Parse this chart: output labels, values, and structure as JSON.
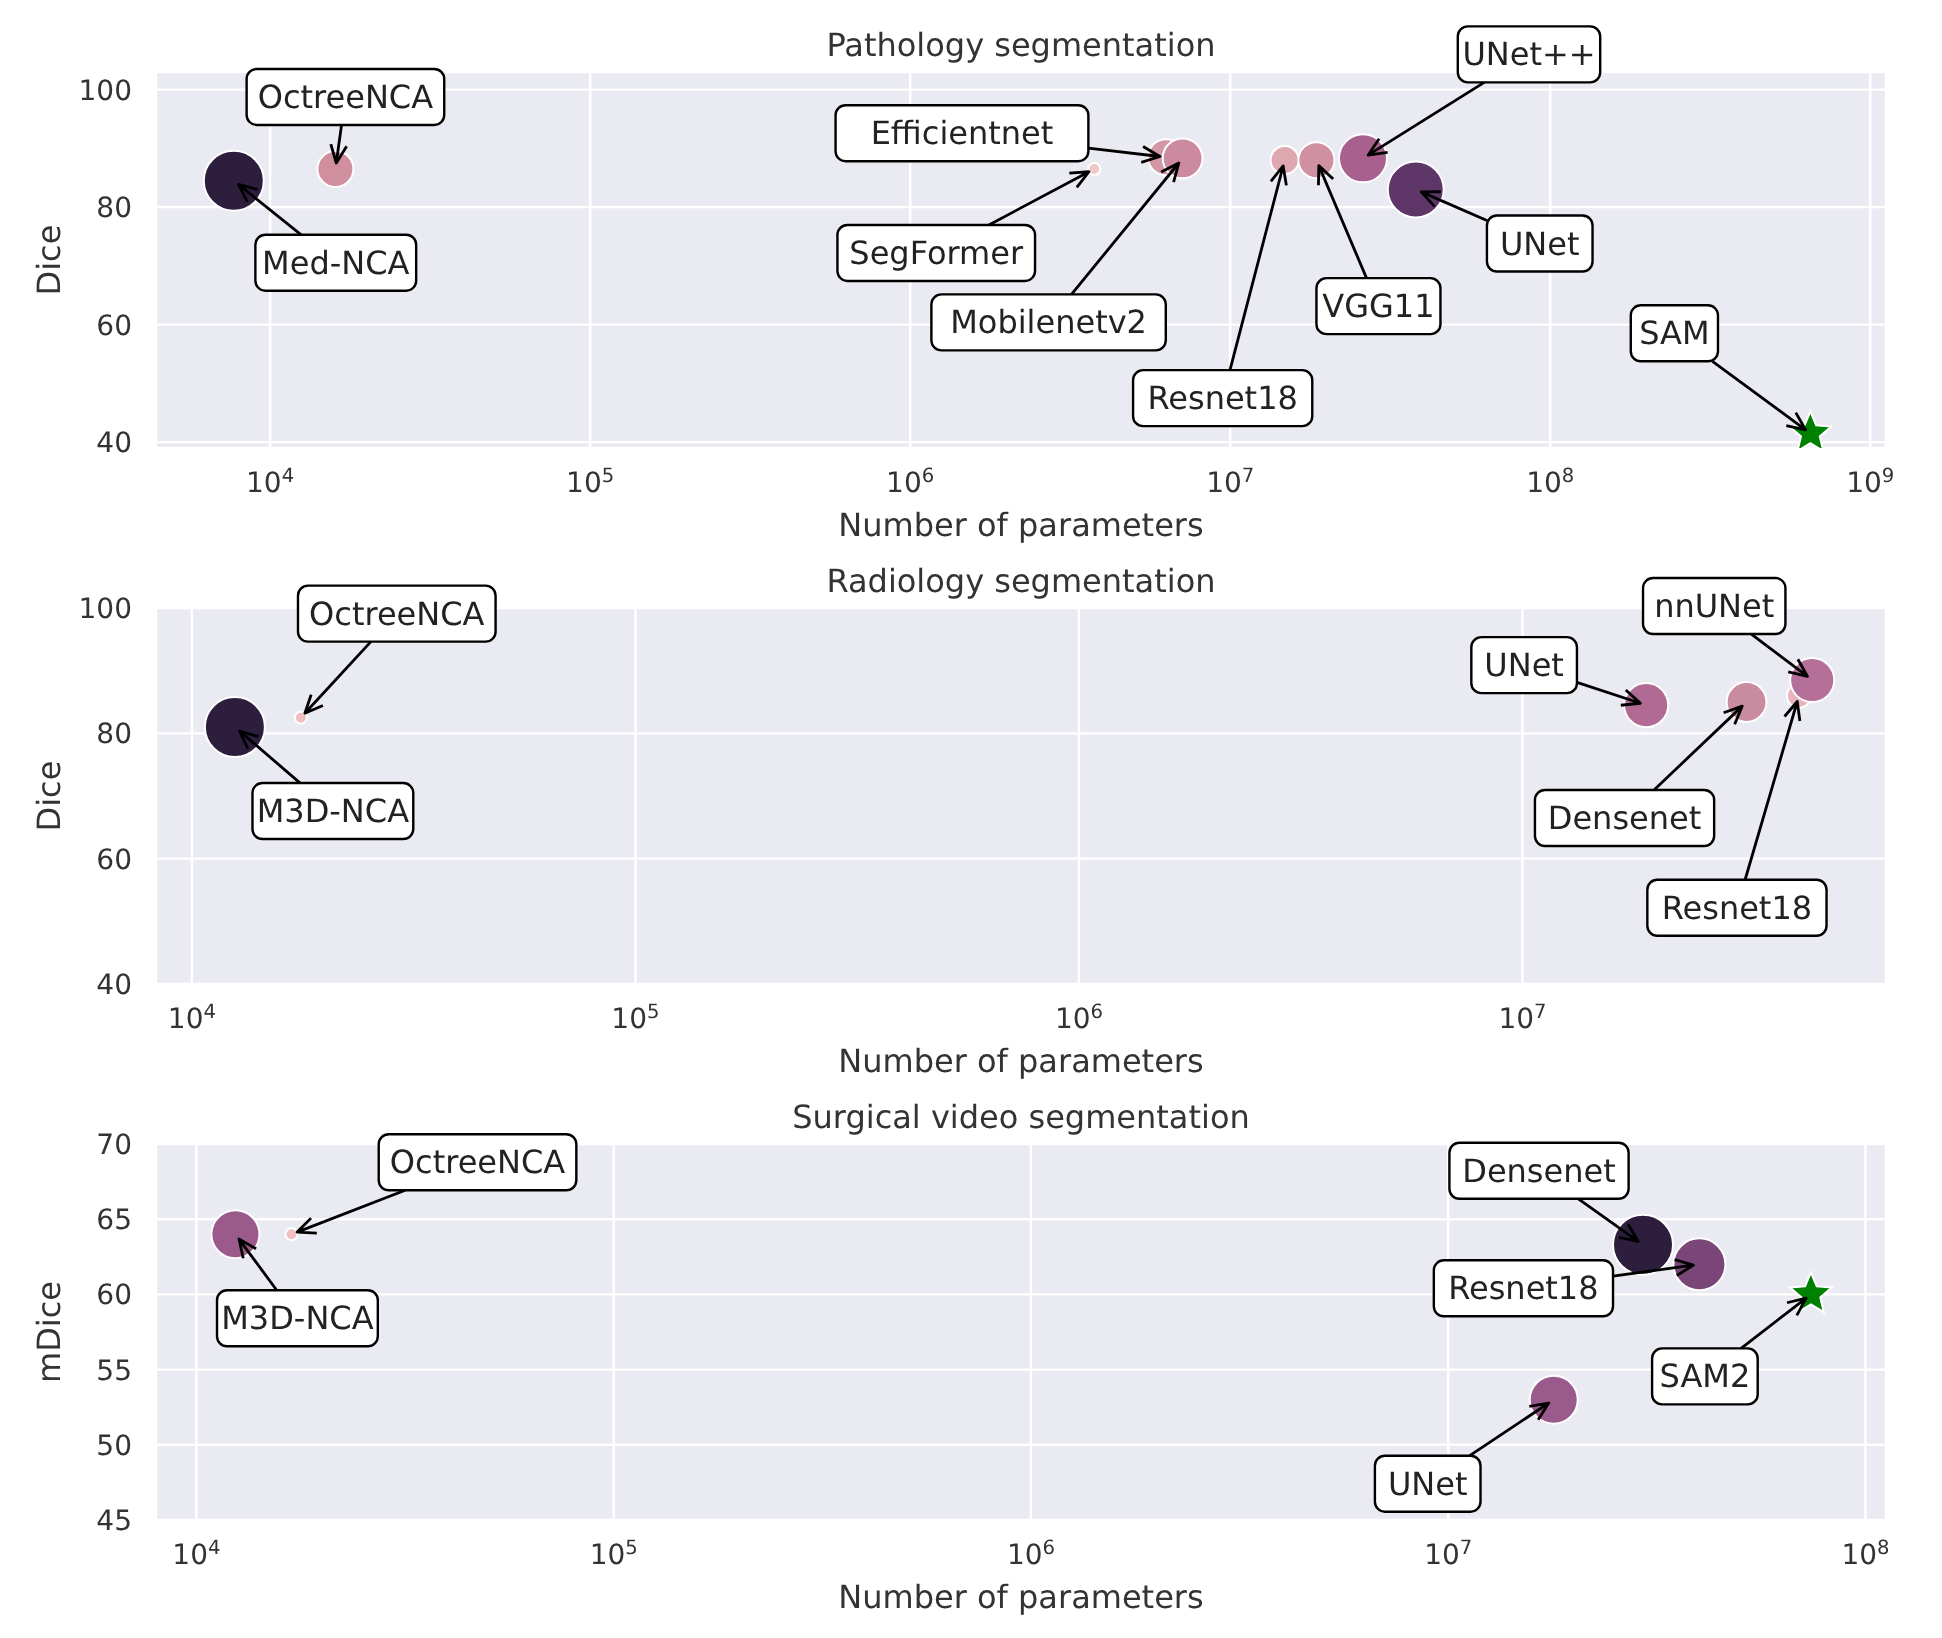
{
  "chart_data": [
    {
      "type": "bubble",
      "title": "Pathology segmentation",
      "xlabel": "Number of parameters",
      "ylabel": "Dice",
      "log": "x",
      "grid": true,
      "xlim": [
        4400,
        1120000000
      ],
      "xticks": [
        {
          "value": 10000,
          "label": "10$^{4}$"
        },
        {
          "value": 100000,
          "label": "10$^{5}$"
        },
        {
          "value": 1000000,
          "label": "10$^{6}$"
        },
        {
          "value": 10000000,
          "label": "10$^{7}$"
        },
        {
          "value": 100000000,
          "label": "10$^{8}$"
        },
        {
          "value": 1000000000,
          "label": "10$^{9}$"
        }
      ],
      "ylim": [
        39,
        103
      ],
      "yticks": [
        40,
        60,
        80,
        100
      ],
      "series": [
        {
          "type": "bubble",
          "marker": "circle",
          "x": [
            7700,
            16000,
            3760000,
            6300000,
            7100000,
            14800000,
            18600000,
            26000000,
            38000000
          ],
          "values": [
            84.5,
            86.5,
            86.5,
            88.5,
            88.3,
            88,
            88,
            88.3,
            83
          ],
          "sizes": [
            1,
            0.36,
            0.04,
            0.36,
            0.44,
            0.22,
            0.36,
            0.64,
            0.87
          ],
          "colors": [
            "#2d1e3e",
            "#d08f9e",
            "#f0c8c8",
            "#d397a5",
            "#cc8aa0",
            "#dfa8b0",
            "#cf90a2",
            "#a8608e",
            "#5e3668"
          ]
        },
        {
          "type": "scatter",
          "marker": "star",
          "x": [
            650000000
          ],
          "values": [
            41.5
          ],
          "color": "#008000"
        }
      ],
      "annotations": [
        {
          "text": "OctreeNCA",
          "x": 16000,
          "y": 86.5
        },
        {
          "text": "Med-NCA",
          "x": 7700,
          "y": 84.5
        },
        {
          "text": "SegFormer",
          "x": 3760000,
          "y": 86.5
        },
        {
          "text": "Efficientnet",
          "x": 6300000,
          "y": 88.5
        },
        {
          "text": "Mobilenetv2",
          "x": 7100000,
          "y": 88.3
        },
        {
          "text": "Resnet18",
          "x": 14800000,
          "y": 88
        },
        {
          "text": "VGG11",
          "x": 18600000,
          "y": 88
        },
        {
          "text": "UNet++",
          "x": 26000000,
          "y": 88.3
        },
        {
          "text": "UNet",
          "x": 38000000,
          "y": 83
        },
        {
          "text": "SAM",
          "x": 650000000,
          "y": 41.5
        }
      ]
    },
    {
      "type": "bubble",
      "title": "Radiology segmentation",
      "xlabel": "Number of parameters",
      "ylabel": "Dice",
      "log": "x",
      "grid": true,
      "xlim": [
        8300,
        66000000
      ],
      "xticks": [
        {
          "value": 10000,
          "label": "10$^{4}$"
        },
        {
          "value": 100000,
          "label": "10$^{5}$"
        },
        {
          "value": 1000000,
          "label": "10$^{6}$"
        },
        {
          "value": 10000000,
          "label": "10$^{7}$"
        }
      ],
      "ylim": [
        40,
        100
      ],
      "yticks": [
        40,
        60,
        80,
        100
      ],
      "series": [
        {
          "type": "bubble",
          "marker": "circle",
          "x": [
            12500,
            17600,
            19000000,
            32000000,
            42000000,
            45000000
          ],
          "values": [
            81,
            82.5,
            84.5,
            85,
            86,
            88.5
          ],
          "sizes": [
            1,
            0.04,
            0.54,
            0.44,
            0.16,
            0.54
          ],
          "colors": [
            "#2d1e3e",
            "#f0c0c0",
            "#b06a94",
            "#c98ba0",
            "#e7b5bb",
            "#b5709a"
          ]
        }
      ],
      "annotations": [
        {
          "text": "OctreeNCA",
          "x": 17600,
          "y": 82.5
        },
        {
          "text": "M3D-NCA",
          "x": 12500,
          "y": 81
        },
        {
          "text": "UNet",
          "x": 19000000,
          "y": 84.5
        },
        {
          "text": "Densenet",
          "x": 32000000,
          "y": 85
        },
        {
          "text": "Resnet18",
          "x": 42000000,
          "y": 86
        },
        {
          "text": "nnUNet",
          "x": 45000000,
          "y": 88.5
        }
      ]
    },
    {
      "type": "bubble",
      "title": "Surgical video segmentation",
      "xlabel": "Number of parameters",
      "ylabel": "mDice",
      "log": "x",
      "grid": true,
      "xlim": [
        8000,
        112000000
      ],
      "xticks": [
        {
          "value": 10000,
          "label": "10$^{4}$"
        },
        {
          "value": 100000,
          "label": "10$^{5}$"
        },
        {
          "value": 1000000,
          "label": "10$^{6}$"
        },
        {
          "value": 10000000,
          "label": "10$^{7}$"
        },
        {
          "value": 100000000,
          "label": "10$^{8}$"
        }
      ],
      "ylim": [
        45,
        70
      ],
      "yticks": [
        45,
        50,
        55,
        60,
        65,
        70
      ],
      "series": [
        {
          "type": "bubble",
          "marker": "circle",
          "x": [
            12400,
            16900,
            17900000,
            29300000,
            40000000
          ],
          "values": [
            64,
            64,
            53,
            63.3,
            62
          ],
          "sizes": [
            0.64,
            0.04,
            0.64,
            1,
            0.75
          ],
          "colors": [
            "#9b5a8c",
            "#f0c0c0",
            "#9b5a8c",
            "#2d1e3e",
            "#7a4577"
          ]
        },
        {
          "type": "scatter",
          "marker": "star",
          "x": [
            74000000
          ],
          "values": [
            60
          ],
          "color": "#008000"
        }
      ],
      "annotations": [
        {
          "text": "OctreeNCA",
          "x": 16900,
          "y": 64
        },
        {
          "text": "M3D-NCA",
          "x": 12400,
          "y": 64
        },
        {
          "text": "UNet",
          "x": 17900000,
          "y": 53
        },
        {
          "text": "Densenet",
          "x": 29300000,
          "y": 63.3
        },
        {
          "text": "Resnet18",
          "x": 40000000,
          "y": 62
        },
        {
          "text": "SAM2",
          "x": 74000000,
          "y": 60
        }
      ]
    }
  ]
}
